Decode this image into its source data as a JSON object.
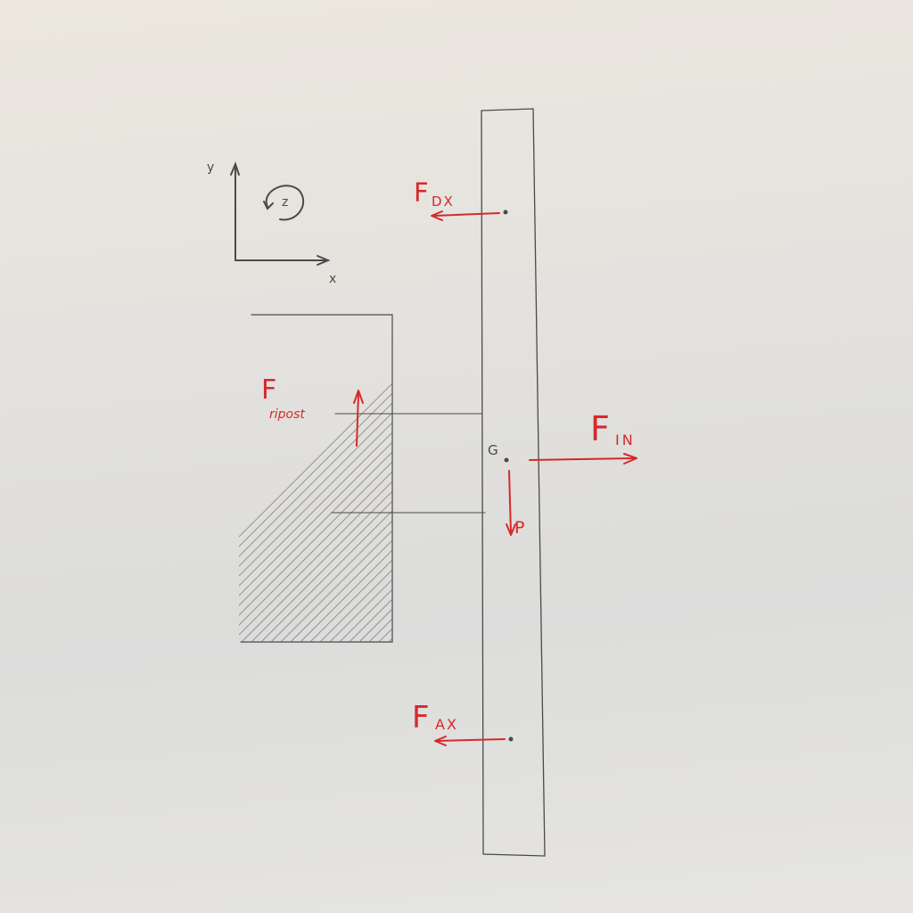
{
  "axes": {
    "y_label": "y",
    "x_label": "x",
    "z_label": "z"
  },
  "labels": {
    "f_dx_main": "F",
    "f_dx_sub": "DX",
    "f_ax_main": "F",
    "f_ax_sub": "AX",
    "f_in_main": "F",
    "f_in_sub": "IN",
    "f_ripost_main": "F",
    "f_ripost_sub": "ripost",
    "g_point": "G",
    "weight": "P"
  },
  "colors": {
    "ink": "#d42a2a",
    "pencil": "#4a4a4a",
    "paper": "#e4e2de"
  }
}
